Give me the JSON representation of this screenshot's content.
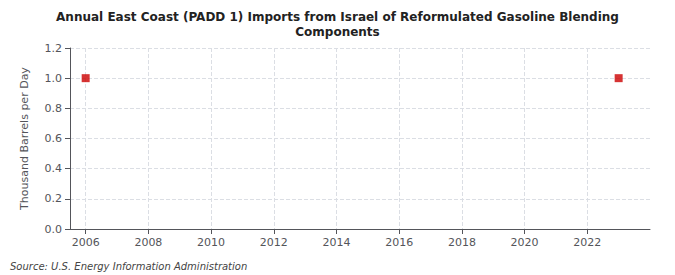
{
  "chart_data": {
    "type": "scatter",
    "title": "Annual East Coast (PADD 1) Imports from Israel of Reformulated Gasoline Blending\nComponents",
    "ylabel": "Thousand Barrels per Day",
    "annotations": [
      "Source: U.S. Energy Information Administration"
    ],
    "x": [
      2006,
      2023
    ],
    "values": [
      1.0,
      1.0
    ],
    "color": "#cc0000",
    "marker": "square",
    "xlim": [
      2005.5,
      2024
    ],
    "ylim": [
      0.0,
      1.2
    ],
    "xticks": [
      2006,
      2008,
      2010,
      2012,
      2014,
      2016,
      2018,
      2020,
      2022
    ],
    "yticks": [
      {
        "value": 0.0,
        "label": "0.0"
      },
      0.2,
      0.4,
      0.6,
      0.8,
      {
        "value": 1.0,
        "label": "1.0"
      },
      1.2
    ],
    "grid": true
  }
}
